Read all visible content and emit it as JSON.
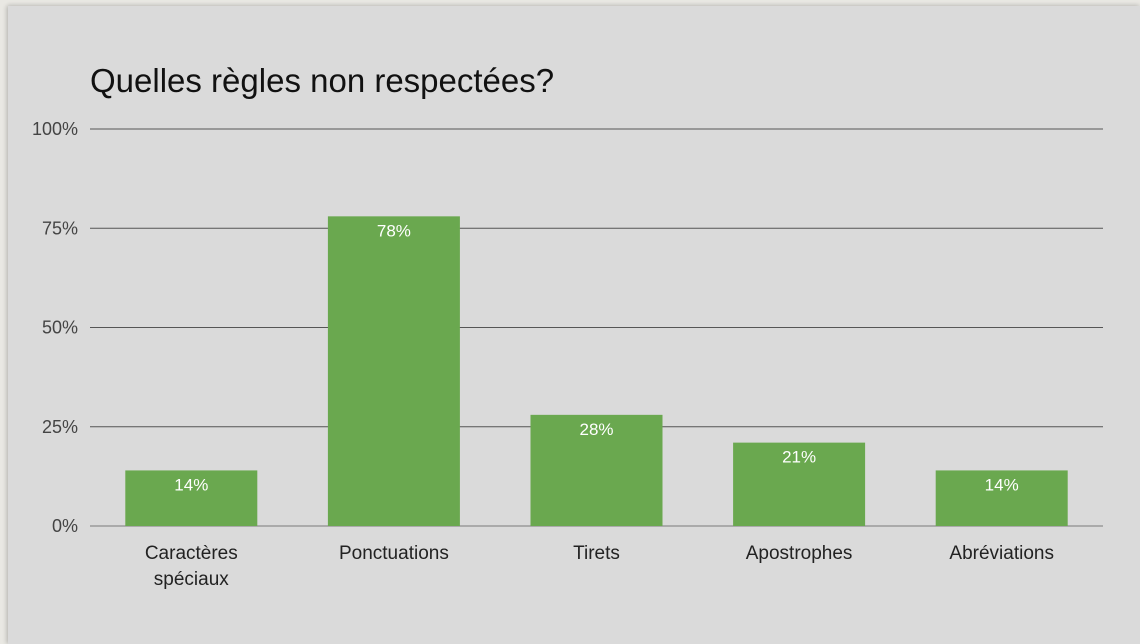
{
  "chart_data": {
    "type": "bar",
    "title": "Quelles règles non respectées?",
    "categories": [
      [
        "Caractères",
        "spéciaux"
      ],
      [
        "Ponctuations"
      ],
      [
        "Tirets"
      ],
      [
        "Apostrophes"
      ],
      [
        "Abréviations"
      ]
    ],
    "values": [
      14,
      78,
      28,
      21,
      14
    ],
    "data_labels": [
      "14%",
      "78%",
      "28%",
      "21%",
      "14%"
    ],
    "ylim": [
      0,
      100
    ],
    "yticks": [
      0,
      25,
      50,
      75,
      100
    ],
    "ytick_labels": [
      "0%",
      "25%",
      "50%",
      "75%",
      "100%"
    ],
    "grid": true,
    "legend": "none",
    "colors": {
      "bar": "#6aa84f",
      "gridline": "#555555",
      "baseline": "#999999",
      "background": "#dadada"
    }
  }
}
